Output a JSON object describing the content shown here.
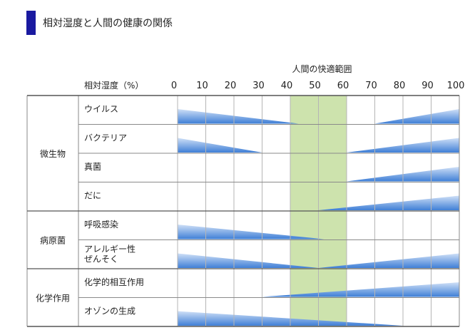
{
  "title": "相対湿度と人間の健康の関係",
  "chart_data": {
    "type": "area",
    "title": "相対湿度と人間の健康の関係",
    "comfort_label": "人間の快適範囲",
    "comfort_range": [
      40,
      60
    ],
    "axis_label": "相対湿度（%）",
    "x_ticks": [
      0,
      10,
      20,
      30,
      40,
      50,
      60,
      70,
      80,
      90,
      100
    ],
    "xlim": [
      0,
      100
    ],
    "groups": [
      {
        "name": "微生物",
        "rows": [
          {
            "label": [
              "ウイルス"
            ],
            "wedges": [
              {
                "from": 0,
                "to": 43,
                "dir": "down"
              },
              {
                "from": 70,
                "to": 100,
                "dir": "up"
              }
            ]
          },
          {
            "label": [
              "バクテリア"
            ],
            "wedges": [
              {
                "from": 0,
                "to": 30,
                "dir": "down"
              },
              {
                "from": 60,
                "to": 100,
                "dir": "up"
              }
            ]
          },
          {
            "label": [
              "真菌"
            ],
            "wedges": [
              {
                "from": 60,
                "to": 100,
                "dir": "up"
              }
            ]
          },
          {
            "label": [
              "だに"
            ],
            "wedges": [
              {
                "from": 50,
                "to": 100,
                "dir": "up"
              }
            ]
          }
        ]
      },
      {
        "name": "病原菌",
        "rows": [
          {
            "label": [
              "呼吸感染"
            ],
            "wedges": [
              {
                "from": 0,
                "to": 52,
                "dir": "down"
              }
            ]
          },
          {
            "label": [
              "アレルギー性",
              "ぜんそく"
            ],
            "wedges": [
              {
                "from": 0,
                "to": 50,
                "dir": "down"
              },
              {
                "from": 50,
                "to": 100,
                "dir": "up"
              }
            ]
          }
        ]
      },
      {
        "name": "化学作用",
        "rows": [
          {
            "label": [
              "化学的相互作用"
            ],
            "wedges": [
              {
                "from": 30,
                "to": 100,
                "dir": "up"
              }
            ]
          },
          {
            "label": [
              "オゾンの生成"
            ],
            "wedges": [
              {
                "from": 0,
                "to": 80,
                "dir": "down"
              }
            ]
          }
        ]
      }
    ],
    "colors": {
      "wedge_light": "#cfe0f7",
      "wedge_dark": "#3f7fd6",
      "comfort": "#cde3ad",
      "grid": "#8a8a8a"
    }
  }
}
